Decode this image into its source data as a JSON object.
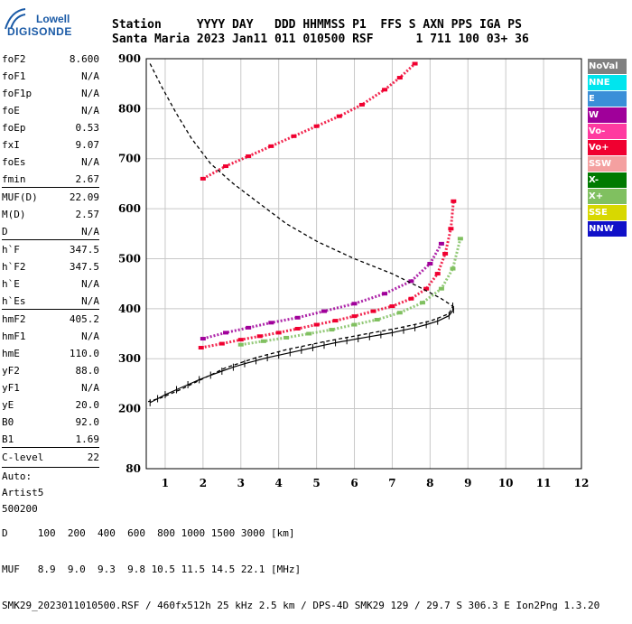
{
  "logo": {
    "line1": "Lowell",
    "line2": "DIGISONDE"
  },
  "header": {
    "row1": "Station     YYYY DAY   DDD HHMMSS P1  FFS S AXN PPS IGA PS",
    "row2": "Santa Maria 2023 Jan11 011 010500 RSF      1 711 100 03+ 36"
  },
  "params": [
    {
      "name": "foF2",
      "value": "8.600"
    },
    {
      "name": "foF1",
      "value": "N/A"
    },
    {
      "name": "foF1p",
      "value": "N/A"
    },
    {
      "name": "foE",
      "value": "N/A"
    },
    {
      "name": "foEp",
      "value": "0.53"
    },
    {
      "name": "fxI",
      "value": "9.07"
    },
    {
      "name": "foEs",
      "value": "N/A"
    },
    {
      "name": "fmin",
      "value": "2.67"
    },
    {
      "name": "MUF(D)",
      "value": "22.09"
    },
    {
      "name": "M(D)",
      "value": "2.57"
    },
    {
      "name": "D",
      "value": "N/A"
    },
    {
      "name": "h`F",
      "value": "347.5"
    },
    {
      "name": "h`F2",
      "value": "347.5"
    },
    {
      "name": "h`E",
      "value": "N/A"
    },
    {
      "name": "h`Es",
      "value": "N/A"
    },
    {
      "name": "hmF2",
      "value": "405.2"
    },
    {
      "name": "hmF1",
      "value": "N/A"
    },
    {
      "name": "hmE",
      "value": "110.0"
    },
    {
      "name": "yF2",
      "value": "88.0"
    },
    {
      "name": "yF1",
      "value": "N/A"
    },
    {
      "name": "yE",
      "value": "20.0"
    },
    {
      "name": "B0",
      "value": "92.0"
    },
    {
      "name": "B1",
      "value": "1.69"
    },
    {
      "name": "C-level",
      "value": "22"
    }
  ],
  "auto": {
    "line1": "Auto:",
    "line2": "Artist5",
    "line3": "500200"
  },
  "legend": [
    {
      "label": "NoVal",
      "color": "#808080"
    },
    {
      "label": "NNE",
      "color": "#00e5ee"
    },
    {
      "label": "E",
      "color": "#3a8fd8"
    },
    {
      "label": "W",
      "color": "#a0009a"
    },
    {
      "label": "Vo-",
      "color": "#ff3aa0"
    },
    {
      "label": "Vo+",
      "color": "#f00030"
    },
    {
      "label": "SSW",
      "color": "#f4a0a0"
    },
    {
      "label": "X-",
      "color": "#007a00"
    },
    {
      "label": "X+",
      "color": "#80c060"
    },
    {
      "label": "SSE",
      "color": "#d8d800"
    },
    {
      "label": "NNW",
      "color": "#1010c8"
    }
  ],
  "footer": {
    "row1": "D     100  200  400  600  800 1000 1500 3000 [km]",
    "row2": "MUF   8.9  9.0  9.3  9.8 10.5 11.5 14.5 22.1 [MHz]",
    "row3": "SMK29_2023011010500.RSF / 460fx512h 25 kHz 2.5 km / DPS-4D SMK29 129 / 29.7 S 306.3 E Ion2Png 1.3.20"
  },
  "chart_data": {
    "type": "scatter",
    "xlim": [
      0.5,
      12
    ],
    "ylim": [
      80,
      900
    ],
    "xticks": [
      1,
      2,
      3,
      4,
      5,
      6,
      7,
      8,
      9,
      10,
      11,
      12
    ],
    "yticks": [
      80,
      200,
      300,
      400,
      500,
      600,
      700,
      800,
      900
    ],
    "grid": true,
    "series": [
      {
        "name": "Vo+",
        "color": "#f00030",
        "points": [
          [
            1.95,
            322
          ],
          [
            2.5,
            330
          ],
          [
            3.0,
            338
          ],
          [
            3.5,
            345
          ],
          [
            4.0,
            352
          ],
          [
            4.5,
            360
          ],
          [
            5.0,
            368
          ],
          [
            5.5,
            376
          ],
          [
            6.0,
            385
          ],
          [
            6.5,
            395
          ],
          [
            7.0,
            405
          ],
          [
            7.5,
            420
          ],
          [
            7.9,
            440
          ],
          [
            8.2,
            470
          ],
          [
            8.4,
            510
          ],
          [
            8.55,
            560
          ],
          [
            8.62,
            615
          ]
        ]
      },
      {
        "name": "W",
        "color": "#a0009a",
        "points": [
          [
            2.0,
            340
          ],
          [
            2.6,
            352
          ],
          [
            3.2,
            362
          ],
          [
            3.8,
            372
          ],
          [
            4.5,
            382
          ],
          [
            5.2,
            395
          ],
          [
            6.0,
            410
          ],
          [
            6.8,
            430
          ],
          [
            7.5,
            455
          ],
          [
            8.0,
            490
          ],
          [
            8.3,
            530
          ]
        ]
      },
      {
        "name": "X+",
        "color": "#80c060",
        "points": [
          [
            3.0,
            328
          ],
          [
            3.6,
            335
          ],
          [
            4.2,
            342
          ],
          [
            4.8,
            350
          ],
          [
            5.4,
            358
          ],
          [
            6.0,
            368
          ],
          [
            6.6,
            378
          ],
          [
            7.2,
            392
          ],
          [
            7.8,
            412
          ],
          [
            8.3,
            440
          ],
          [
            8.6,
            480
          ],
          [
            8.8,
            540
          ]
        ]
      },
      {
        "name": "Vo+ (2hop)",
        "color": "#f00030",
        "points": [
          [
            2.0,
            660
          ],
          [
            2.6,
            685
          ],
          [
            3.2,
            705
          ],
          [
            3.8,
            725
          ],
          [
            4.4,
            745
          ],
          [
            5.0,
            765
          ],
          [
            5.6,
            785
          ],
          [
            6.2,
            808
          ],
          [
            6.8,
            838
          ],
          [
            7.2,
            862
          ],
          [
            7.6,
            890
          ]
        ]
      }
    ],
    "profile": [
      [
        0.6,
        890
      ],
      [
        0.9,
        845
      ],
      [
        1.3,
        790
      ],
      [
        1.7,
        740
      ],
      [
        2.2,
        690
      ],
      [
        2.8,
        650
      ],
      [
        3.5,
        610
      ],
      [
        4.2,
        570
      ],
      [
        5.0,
        535
      ],
      [
        6.0,
        500
      ],
      [
        7.0,
        470
      ],
      [
        7.8,
        440
      ],
      [
        8.3,
        420
      ],
      [
        8.6,
        405
      ],
      [
        8.5,
        390
      ],
      [
        8.0,
        375
      ],
      [
        7.2,
        362
      ],
      [
        6.2,
        348
      ],
      [
        5.2,
        334
      ],
      [
        4.2,
        318
      ],
      [
        3.4,
        302
      ],
      [
        2.6,
        282
      ],
      [
        2.0,
        260
      ],
      [
        1.4,
        238
      ],
      [
        0.9,
        222
      ],
      [
        0.55,
        214
      ]
    ],
    "ticked_trace": [
      [
        0.6,
        212
      ],
      [
        0.8,
        220
      ],
      [
        1.0,
        228
      ],
      [
        1.3,
        238
      ],
      [
        1.6,
        248
      ],
      [
        1.9,
        258
      ],
      [
        2.2,
        267
      ],
      [
        2.5,
        275
      ],
      [
        2.8,
        283
      ],
      [
        3.1,
        290
      ],
      [
        3.4,
        296
      ],
      [
        3.7,
        302
      ],
      [
        4.0,
        307
      ],
      [
        4.3,
        312
      ],
      [
        4.6,
        317
      ],
      [
        4.9,
        322
      ],
      [
        5.2,
        327
      ],
      [
        5.5,
        332
      ],
      [
        5.8,
        336
      ],
      [
        6.1,
        340
      ],
      [
        6.4,
        344
      ],
      [
        6.7,
        348
      ],
      [
        7.0,
        352
      ],
      [
        7.3,
        357
      ],
      [
        7.6,
        362
      ],
      [
        7.9,
        368
      ],
      [
        8.2,
        375
      ],
      [
        8.5,
        386
      ],
      [
        8.62,
        398
      ],
      [
        8.6,
        405
      ]
    ]
  }
}
